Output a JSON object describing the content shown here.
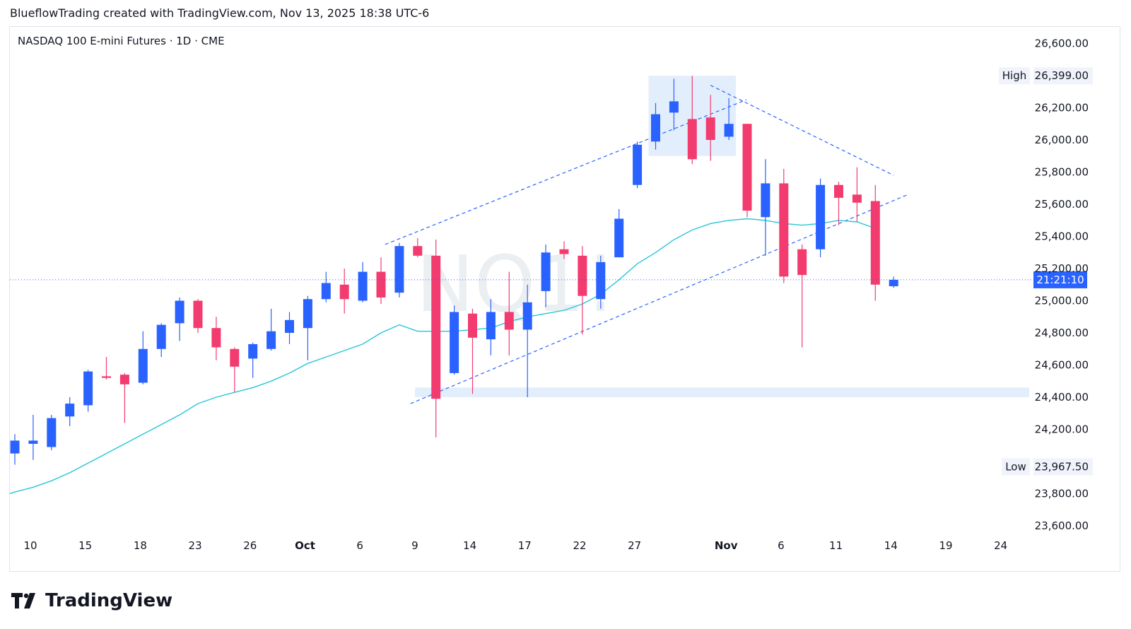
{
  "header": {
    "attribution": "BlueflowTrading created with TradingView.com, Nov 13, 2025 18:38 UTC-6"
  },
  "chart_data": {
    "type": "candlestick",
    "title": "NASDAQ 100 E-mini Futures · 1D · CME",
    "watermark": "NQ1!",
    "y_range": [
      23500,
      26700
    ],
    "y_ticks": [
      "26,600.00",
      "26,200.00",
      "26,000.00",
      "25,800.00",
      "25,600.00",
      "25,400.00",
      "25,200.00",
      "25,000.00",
      "24,800.00",
      "24,600.00",
      "24,400.00",
      "24,200.00",
      "23,800.00",
      "23,600.00"
    ],
    "y_tick_values": [
      26600,
      26200,
      26000,
      25800,
      25600,
      25400,
      25200,
      25000,
      24800,
      24600,
      24400,
      24200,
      23800,
      23600
    ],
    "x_ticks": [
      {
        "label": "10",
        "slot": 0,
        "bold": false
      },
      {
        "label": "15",
        "slot": 3,
        "bold": false
      },
      {
        "label": "18",
        "slot": 6,
        "bold": false
      },
      {
        "label": "23",
        "slot": 9,
        "bold": false
      },
      {
        "label": "26",
        "slot": 12,
        "bold": false
      },
      {
        "label": "Oct",
        "slot": 15,
        "bold": true
      },
      {
        "label": "6",
        "slot": 18,
        "bold": false
      },
      {
        "label": "9",
        "slot": 21,
        "bold": false
      },
      {
        "label": "14",
        "slot": 24,
        "bold": false
      },
      {
        "label": "17",
        "slot": 27,
        "bold": false
      },
      {
        "label": "22",
        "slot": 30,
        "bold": false
      },
      {
        "label": "27",
        "slot": 33,
        "bold": false
      },
      {
        "label": "Nov",
        "slot": 38,
        "bold": true
      },
      {
        "label": "6",
        "slot": 41,
        "bold": false
      },
      {
        "label": "11",
        "slot": 44,
        "bold": false
      },
      {
        "label": "14",
        "slot": 47,
        "bold": false
      },
      {
        "label": "19",
        "slot": 50,
        "bold": false
      },
      {
        "label": "24",
        "slot": 53,
        "bold": false
      }
    ],
    "candles": [
      {
        "o": 24050,
        "h": 24170,
        "l": 23980,
        "c": 24130
      },
      {
        "o": 24110,
        "h": 24290,
        "l": 24010,
        "c": 24130
      },
      {
        "o": 24090,
        "h": 24290,
        "l": 24070,
        "c": 24270
      },
      {
        "o": 24280,
        "h": 24400,
        "l": 24220,
        "c": 24360
      },
      {
        "o": 24350,
        "h": 24570,
        "l": 24310,
        "c": 24560
      },
      {
        "o": 24530,
        "h": 24650,
        "l": 24510,
        "c": 24520
      },
      {
        "o": 24540,
        "h": 24550,
        "l": 24240,
        "c": 24480
      },
      {
        "o": 24490,
        "h": 24810,
        "l": 24480,
        "c": 24700
      },
      {
        "o": 24700,
        "h": 24860,
        "l": 24650,
        "c": 24850
      },
      {
        "o": 24860,
        "h": 25020,
        "l": 24750,
        "c": 25000
      },
      {
        "o": 25000,
        "h": 25010,
        "l": 24800,
        "c": 24830
      },
      {
        "o": 24830,
        "h": 24900,
        "l": 24630,
        "c": 24710
      },
      {
        "o": 24700,
        "h": 24710,
        "l": 24430,
        "c": 24590
      },
      {
        "o": 24640,
        "h": 24740,
        "l": 24520,
        "c": 24730
      },
      {
        "o": 24700,
        "h": 24950,
        "l": 24690,
        "c": 24810
      },
      {
        "o": 24800,
        "h": 24930,
        "l": 24730,
        "c": 24880
      },
      {
        "o": 24830,
        "h": 25030,
        "l": 24630,
        "c": 25010
      },
      {
        "o": 25010,
        "h": 25180,
        "l": 24990,
        "c": 25110
      },
      {
        "o": 25100,
        "h": 25200,
        "l": 24920,
        "c": 25010
      },
      {
        "o": 25000,
        "h": 25240,
        "l": 24990,
        "c": 25180
      },
      {
        "o": 25180,
        "h": 25270,
        "l": 24980,
        "c": 25020
      },
      {
        "o": 25050,
        "h": 25360,
        "l": 25020,
        "c": 25340
      },
      {
        "o": 25340,
        "h": 25390,
        "l": 25270,
        "c": 25280
      },
      {
        "o": 25280,
        "h": 25380,
        "l": 24150,
        "c": 24390
      },
      {
        "o": 24550,
        "h": 24970,
        "l": 24540,
        "c": 24930
      },
      {
        "o": 24920,
        "h": 24950,
        "l": 24420,
        "c": 24770
      },
      {
        "o": 24760,
        "h": 25010,
        "l": 24660,
        "c": 24930
      },
      {
        "o": 24930,
        "h": 25180,
        "l": 24660,
        "c": 24820
      },
      {
        "o": 24820,
        "h": 25100,
        "l": 24400,
        "c": 24990
      },
      {
        "o": 25060,
        "h": 25350,
        "l": 24960,
        "c": 25300
      },
      {
        "o": 25320,
        "h": 25370,
        "l": 25260,
        "c": 25290
      },
      {
        "o": 25280,
        "h": 25340,
        "l": 24790,
        "c": 25030
      },
      {
        "o": 25010,
        "h": 25280,
        "l": 24950,
        "c": 25240
      },
      {
        "o": 25270,
        "h": 25570,
        "l": 25270,
        "c": 25510
      },
      {
        "o": 25720,
        "h": 25990,
        "l": 25700,
        "c": 25970
      },
      {
        "o": 25990,
        "h": 26230,
        "l": 25940,
        "c": 26160
      },
      {
        "o": 26170,
        "h": 26380,
        "l": 26060,
        "c": 26240
      },
      {
        "o": 26130,
        "h": 26399,
        "l": 25850,
        "c": 25880
      },
      {
        "o": 26140,
        "h": 26280,
        "l": 25870,
        "c": 26000
      },
      {
        "o": 26020,
        "h": 26260,
        "l": 26000,
        "c": 26100
      },
      {
        "o": 26100,
        "h": 26100,
        "l": 25520,
        "c": 25560
      },
      {
        "o": 25520,
        "h": 25880,
        "l": 25280,
        "c": 25730
      },
      {
        "o": 25730,
        "h": 25820,
        "l": 25110,
        "c": 25150
      },
      {
        "o": 25320,
        "h": 25350,
        "l": 24710,
        "c": 25160
      },
      {
        "o": 25320,
        "h": 25760,
        "l": 25270,
        "c": 25720
      },
      {
        "o": 25720,
        "h": 25740,
        "l": 25470,
        "c": 25640
      },
      {
        "o": 25660,
        "h": 25830,
        "l": 25490,
        "c": 25610
      },
      {
        "o": 25620,
        "h": 25720,
        "l": 25000,
        "c": 25100
      },
      {
        "o": 25090,
        "h": 25150,
        "l": 25080,
        "c": 25130
      }
    ],
    "ma": [
      23810,
      23840,
      23880,
      23930,
      23990,
      24050,
      24110,
      24170,
      24230,
      24290,
      24360,
      24400,
      24430,
      24460,
      24500,
      24550,
      24610,
      24650,
      24690,
      24730,
      24800,
      24850,
      24810,
      24810,
      24810,
      24820,
      24830,
      24870,
      24900,
      24920,
      24940,
      24980,
      25040,
      25130,
      25230,
      25300,
      25380,
      25440,
      25480,
      25500,
      25510,
      25500,
      25480,
      25470,
      25480,
      25500,
      25490,
      25450
    ],
    "price_label": "21:21:10",
    "price_level": 25130,
    "high_label": "High",
    "high_value": "26,399.00",
    "high_level": 26399,
    "low_label": "Low",
    "low_value": "23,967.50",
    "low_level": 23967.5,
    "colors": {
      "up": "#2962ff",
      "down": "#f23b6f",
      "ma": "#26c6da",
      "trend": "#2962ff",
      "zone": "#e3eefc",
      "price_bg": "#2962ff"
    }
  }
}
